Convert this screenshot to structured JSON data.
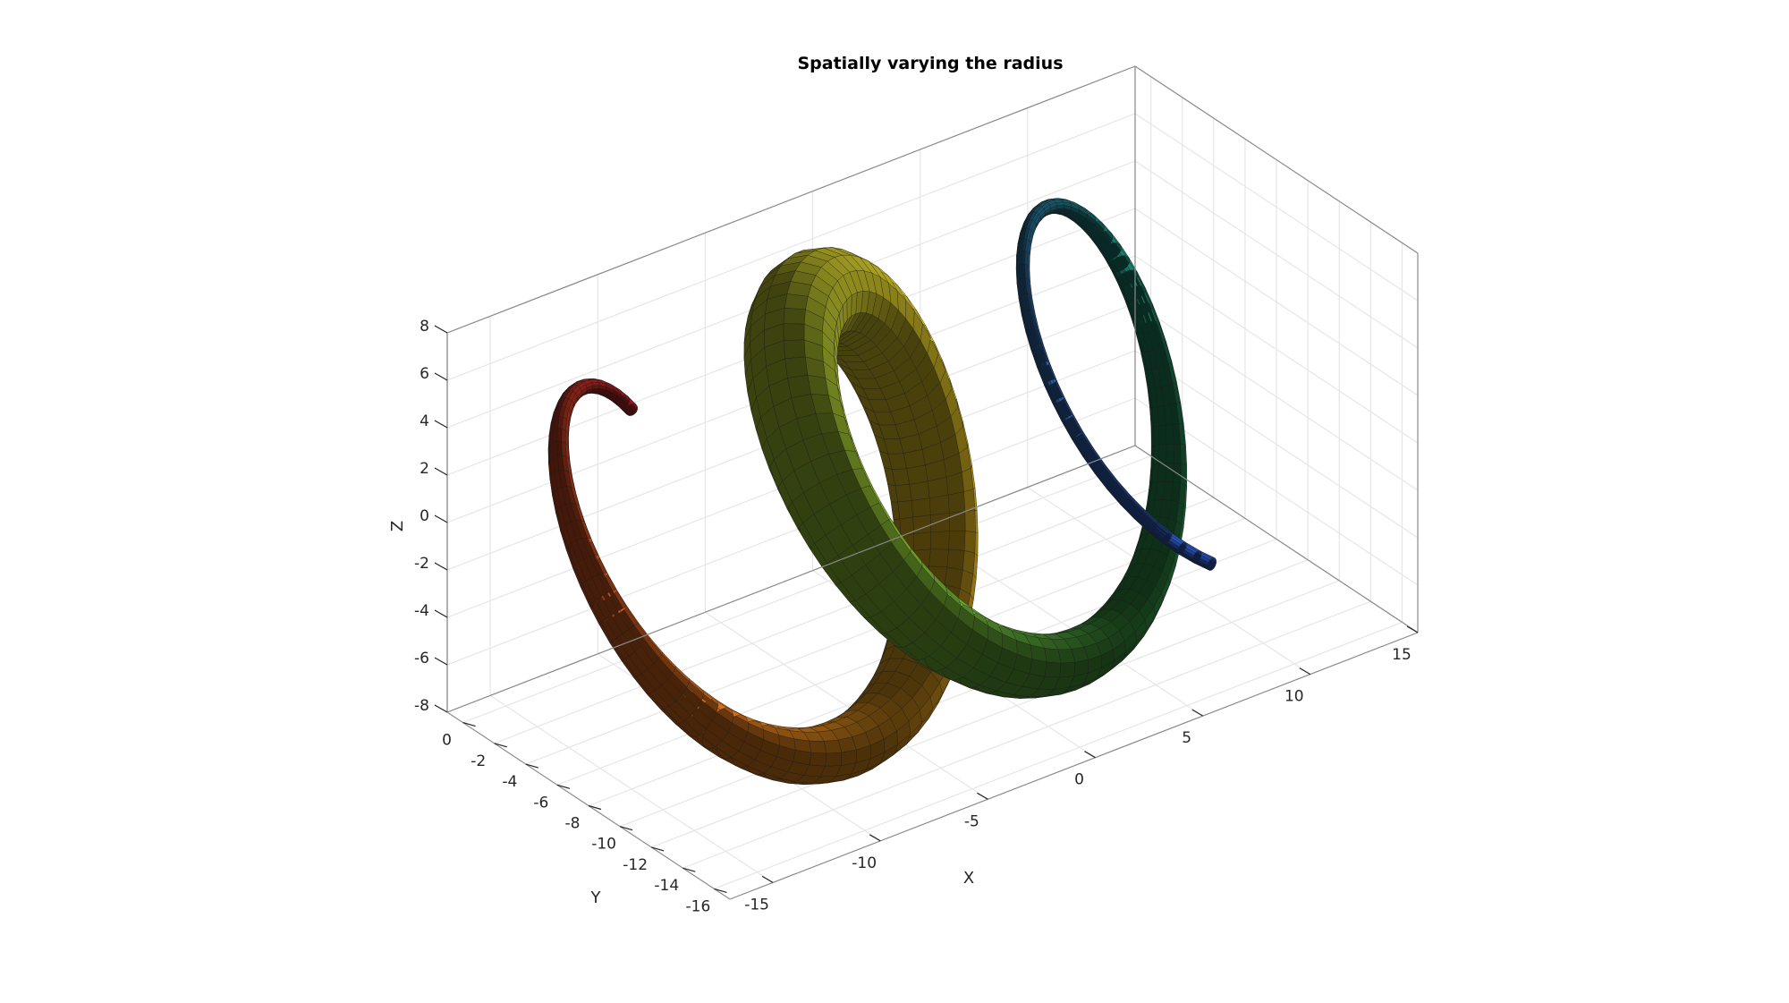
{
  "chart_data": {
    "type": "surface",
    "title": "Spatially varying the radius",
    "xlabel": "X",
    "ylabel": "Y",
    "zlabel": "Z",
    "grid": true,
    "box": true,
    "xlim": [
      -17,
      15
    ],
    "ylim": [
      -17,
      1
    ],
    "zlim": [
      -8,
      8
    ],
    "x_ticks": [
      -15,
      -10,
      -5,
      0,
      5,
      10,
      15
    ],
    "y_ticks": [
      0,
      -2,
      -4,
      -6,
      -8,
      -10,
      -12,
      -14,
      -16
    ],
    "z_ticks": [
      8,
      6,
      4,
      2,
      0,
      -2,
      -4,
      -6,
      -8
    ],
    "x_tick_labels": [
      "-15",
      "-10",
      "-5",
      "0",
      "5",
      "10",
      "15"
    ],
    "y_tick_labels": [
      "0",
      "-2",
      "-4",
      "-6",
      "-8",
      "-10",
      "-12",
      "-14",
      "-16"
    ],
    "z_tick_labels": [
      "8",
      "6",
      "4",
      "2",
      "0",
      "-2",
      "-4",
      "-6",
      "-8"
    ],
    "tube": {
      "description_of_shape": "helical tube along X",
      "helix_radius": 8,
      "turns": 2.5,
      "x_range": [
        -15,
        12
      ],
      "y_center": -8,
      "tube_radius_range": [
        0.25,
        1.8
      ]
    },
    "colormap": [
      "#b01a22",
      "#c4481c",
      "#d6821a",
      "#d8b31e",
      "#c6c22a",
      "#7fb52e",
      "#2d8a3c",
      "#157a66",
      "#2a6aa6",
      "#2852c4"
    ],
    "edge_color": "#1a1a1a",
    "background": "#ffffff",
    "grid_color": "#e6e6e6",
    "box_color": "#8a8a8a"
  }
}
